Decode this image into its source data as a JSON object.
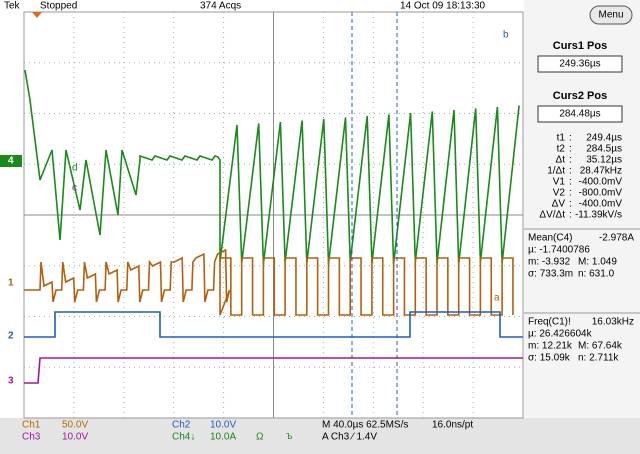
{
  "header": {
    "brand": "Tek",
    "status": "Stopped",
    "acqs": "374 Acqs",
    "datetime": "14 Oct 09 18:13:30"
  },
  "menu_button": "Menu",
  "cursors": {
    "curs1_label": "Curs1 Pos",
    "curs1_value": "249.36µs",
    "curs2_label": "Curs2 Pos",
    "curs2_value": "284.48µs",
    "readouts": [
      [
        "t1",
        ":",
        "249.4µs"
      ],
      [
        "t2",
        ":",
        "284.5µs"
      ],
      [
        "Δt",
        ":",
        "35.12µs"
      ],
      [
        "1/Δt",
        ":",
        "28.47kHz"
      ],
      [
        "V1",
        ":",
        "-400.0mV"
      ],
      [
        "V2",
        ":",
        "-800.0mV"
      ],
      [
        "ΔV",
        ":",
        "-400.0mV"
      ],
      [
        "ΔV/Δt",
        ":",
        "-11.39kV/s"
      ]
    ]
  },
  "measurements": [
    {
      "title": "Mean(C4)",
      "value": "-2.978A",
      "stats": [
        [
          "µ: -1.7400786",
          ""
        ],
        [
          "m: -3.932",
          "M: 1.049"
        ],
        [
          "σ: 733.3m",
          "n: 631.0"
        ]
      ]
    },
    {
      "title": "Freq(C1)!",
      "value": "16.03kHz",
      "stats": [
        [
          "µ: 26.426604k",
          ""
        ],
        [
          "m: 12.21k",
          "M: 67.64k"
        ],
        [
          "σ: 15.09k",
          "n: 2.711k"
        ]
      ]
    }
  ],
  "channel_markers": [
    "4",
    "1",
    "2",
    "3"
  ],
  "waveform_labels": [
    "a",
    "b",
    "c",
    "d"
  ],
  "footer": {
    "ch1": "Ch1",
    "ch1_scale": "50.0V",
    "ch2": "Ch2",
    "ch2_scale": "10.0V",
    "timebase": "M 40.0µs 62.5MS/s",
    "resolution": "16.0ns/pt",
    "ch3": "Ch3",
    "ch3_scale": "10.0V",
    "ch4": "Ch4↓",
    "ch4_scale": "10.0A",
    "ch4_impedance": "Ω",
    "bw": "Ъ",
    "trigger": "A  Ch3  ⁄  1.4V"
  }
}
